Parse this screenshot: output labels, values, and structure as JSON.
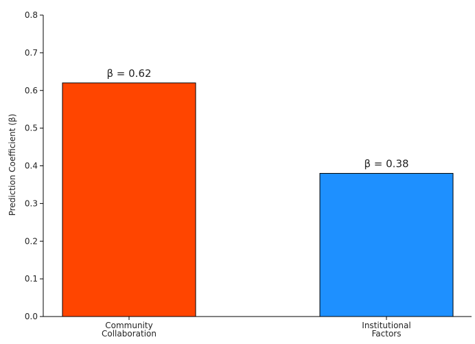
{
  "chart_data": {
    "type": "bar",
    "title": "",
    "xlabel": "",
    "ylabel": "Prediction Coefficient (β)",
    "ylim": [
      0,
      0.8
    ],
    "yticks": [
      "0.0",
      "0.1",
      "0.2",
      "0.3",
      "0.4",
      "0.5",
      "0.6",
      "0.7",
      "0.8"
    ],
    "ytick_values": [
      0,
      0.1,
      0.2,
      0.3,
      0.4,
      0.5,
      0.6,
      0.7,
      0.8
    ],
    "categories": [
      [
        "Community",
        "Collaboration"
      ],
      [
        "Institutional",
        "Factors"
      ]
    ],
    "values": [
      0.62,
      0.38
    ],
    "data_labels": [
      "β = 0.62",
      "β = 0.38"
    ],
    "colors": [
      "#ff4500",
      "#1e90ff"
    ],
    "bar_edge_color": "#000000",
    "grid": false,
    "legend": "none"
  }
}
